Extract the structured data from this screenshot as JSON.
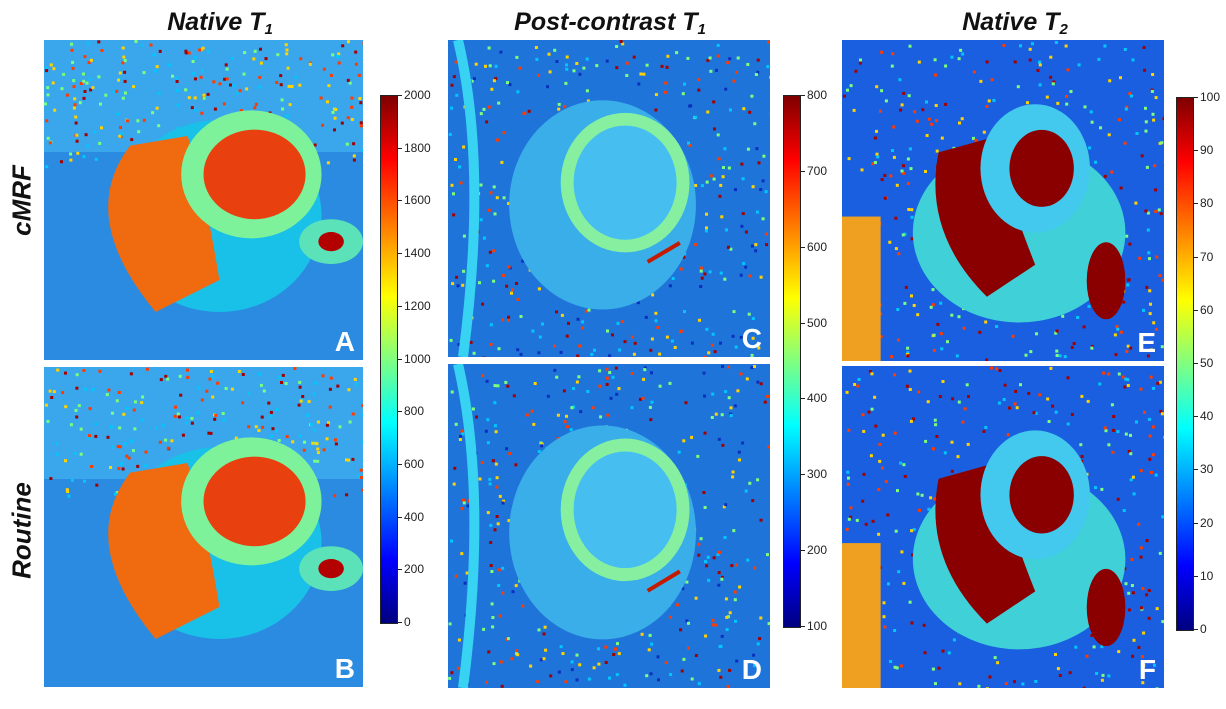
{
  "column_titles": [
    {
      "main": "Native T",
      "sub": "1"
    },
    {
      "main": "Post-contrast T",
      "sub": "1"
    },
    {
      "main": "Native T",
      "sub": "2"
    }
  ],
  "row_titles": [
    "cMRF",
    "Routine"
  ],
  "panels": [
    {
      "letter": "A",
      "image": "cardiac-mri-native-t1-cmrf"
    },
    {
      "letter": "B",
      "image": "cardiac-mri-native-t1-routine"
    },
    {
      "letter": "C",
      "image": "cardiac-mri-postcontrast-t1-cmrf"
    },
    {
      "letter": "D",
      "image": "cardiac-mri-postcontrast-t1-routine"
    },
    {
      "letter": "E",
      "image": "cardiac-mri-native-t2-cmrf"
    },
    {
      "letter": "F",
      "image": "cardiac-mri-native-t2-routine"
    }
  ],
  "colorbars": [
    {
      "ticks": [
        "2000",
        "1800",
        "1600",
        "1400",
        "1200",
        "1000",
        "800",
        "600",
        "400",
        "200",
        "0"
      ]
    },
    {
      "ticks": [
        "800",
        "700",
        "600",
        "500",
        "400",
        "300",
        "200",
        "100"
      ]
    },
    {
      "ticks": [
        "100",
        "90",
        "80",
        "70",
        "60",
        "50",
        "40",
        "30",
        "20",
        "10",
        "0"
      ]
    }
  ],
  "colormap": "jet"
}
